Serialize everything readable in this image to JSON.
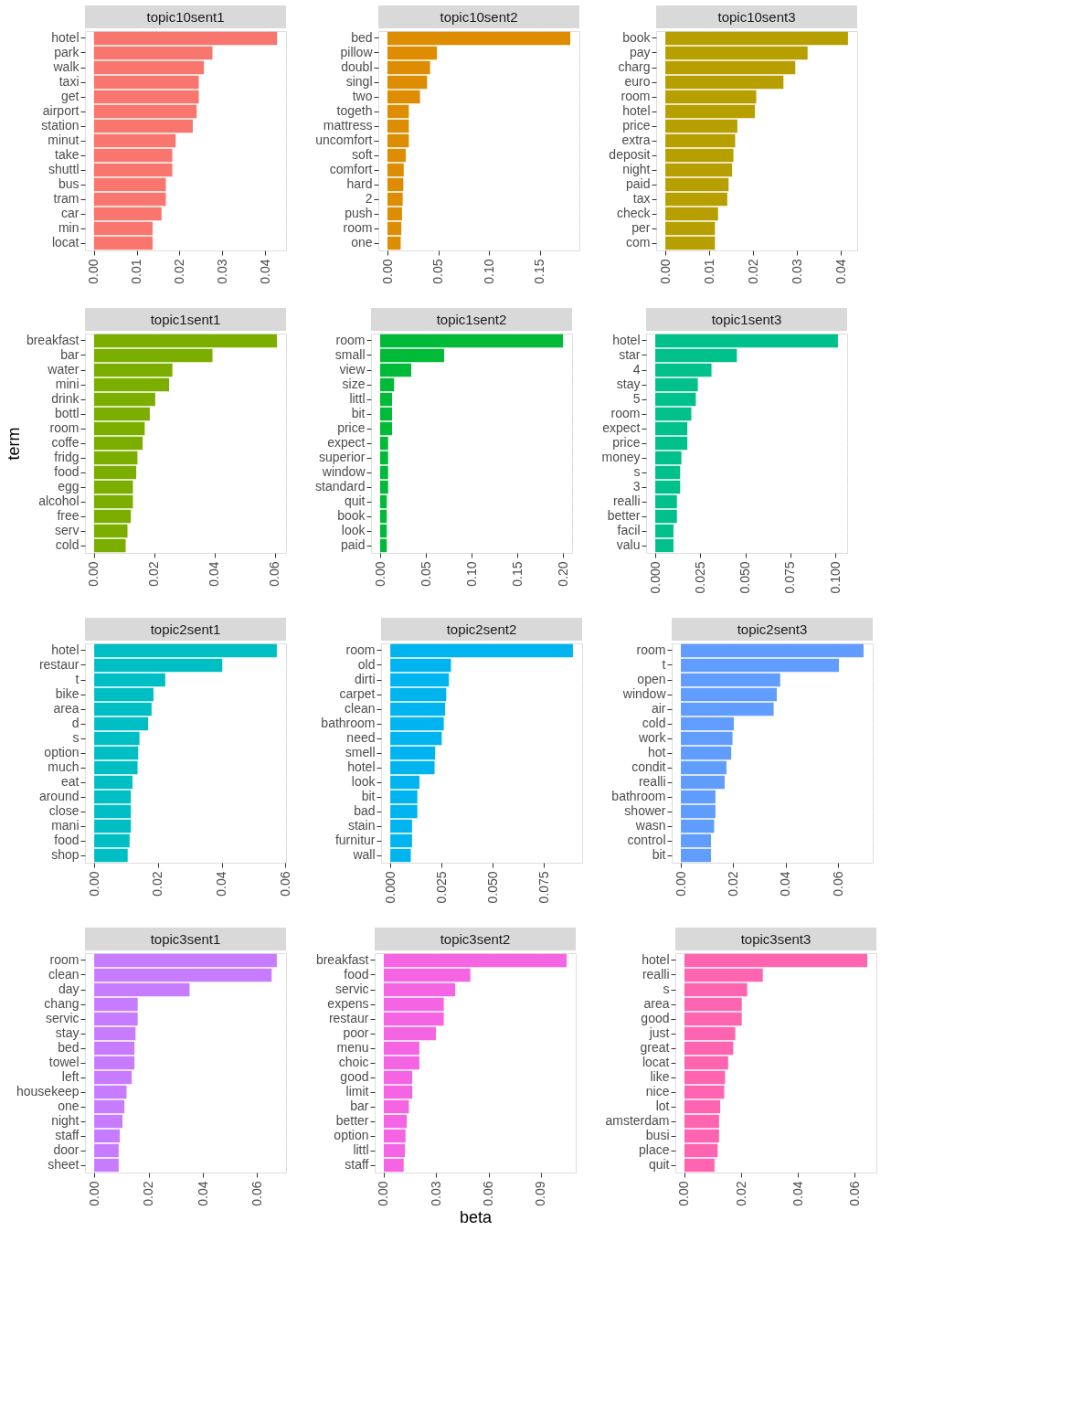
{
  "chart_data": [
    {
      "type": "bar",
      "orientation": "horizontal",
      "title": "topic10sent1",
      "color": "#f8766d",
      "grid": true,
      "categories": [
        "hotel",
        "park",
        "walk",
        "taxi",
        "get",
        "airport",
        "station",
        "minut",
        "take",
        "shuttl",
        "bus",
        "tram",
        "car",
        "min",
        "locat"
      ],
      "values": [
        0.0428,
        0.0277,
        0.0257,
        0.0245,
        0.0245,
        0.024,
        0.0231,
        0.0191,
        0.0183,
        0.0183,
        0.0168,
        0.0168,
        0.0158,
        0.0137,
        0.0137
      ],
      "xlim": [
        -0.0021,
        0.0449
      ],
      "xticks": [
        {
          "value": 0,
          "label": "0.00"
        },
        0.01,
        0.02,
        0.03,
        0.04
      ]
    },
    {
      "type": "bar",
      "orientation": "horizontal",
      "title": "topic10sent2",
      "color": "#de8c00",
      "grid": true,
      "categories": [
        "bed",
        "pillow",
        "doubl",
        "singl",
        "two",
        "togeth",
        "mattress",
        "uncomfort",
        "soft",
        "comfort",
        "hard",
        "2",
        "push",
        "room",
        "one"
      ],
      "values": [
        0.18,
        0.0487,
        0.042,
        0.039,
        0.032,
        0.021,
        0.021,
        0.021,
        0.018,
        0.016,
        0.0156,
        0.015,
        0.0143,
        0.0136,
        0.013
      ],
      "xlim": [
        -0.009,
        0.189
      ],
      "xticks": [
        {
          "value": 0,
          "label": "0.00"
        },
        0.05,
        {
          "value": 0.1,
          "label": "0.10"
        },
        0.15
      ]
    },
    {
      "type": "bar",
      "orientation": "horizontal",
      "title": "topic10sent3",
      "color": "#b79f00",
      "grid": true,
      "categories": [
        "book",
        "pay",
        "charg",
        "euro",
        "room",
        "hotel",
        "price",
        "extra",
        "deposit",
        "night",
        "paid",
        "tax",
        "check",
        "per",
        "com"
      ],
      "values": [
        0.0416,
        0.0324,
        0.0296,
        0.0269,
        0.0207,
        0.0204,
        0.0164,
        0.0159,
        0.0155,
        0.0152,
        0.0144,
        0.0141,
        0.012,
        0.0113,
        0.0113
      ],
      "xlim": [
        -0.0021,
        0.0437
      ],
      "xticks": [
        {
          "value": 0,
          "label": "0.00"
        },
        0.01,
        0.02,
        0.03,
        0.04
      ]
    },
    {
      "type": "bar",
      "orientation": "horizontal",
      "title": "topic1sent1",
      "ylabel": "term",
      "color": "#7cae00",
      "grid": true,
      "categories": [
        "breakfast",
        "bar",
        "water",
        "mini",
        "drink",
        "bottl",
        "room",
        "coffe",
        "fridg",
        "food",
        "egg",
        "alcohol",
        "free",
        "serv",
        "cold"
      ],
      "values": [
        0.0607,
        0.0393,
        0.026,
        0.0249,
        0.0203,
        0.0185,
        0.0168,
        0.0161,
        0.0144,
        0.014,
        0.0129,
        0.0129,
        0.0122,
        0.0111,
        0.0105
      ],
      "xlim": [
        -0.003,
        0.0637
      ],
      "xticks": [
        {
          "value": 0,
          "label": "0.00"
        },
        0.02,
        0.04,
        0.06
      ]
    },
    {
      "type": "bar",
      "orientation": "horizontal",
      "title": "topic1sent2",
      "color": "#00ba38",
      "grid": true,
      "categories": [
        "room",
        "small",
        "view",
        "size",
        "littl",
        "bit",
        "price",
        "expect",
        "superior",
        "window",
        "standard",
        "quit",
        "book",
        "look",
        "paid"
      ],
      "values": [
        0.2,
        0.07,
        0.034,
        0.0152,
        0.013,
        0.013,
        0.013,
        0.0087,
        0.0087,
        0.0087,
        0.0087,
        0.0072,
        0.0072,
        0.0072,
        0.0072
      ],
      "xlim": [
        -0.01,
        0.21
      ],
      "xticks": [
        {
          "value": 0,
          "label": "0.00"
        },
        0.05,
        {
          "value": 0.1,
          "label": "0.10"
        },
        0.15,
        {
          "value": 0.2,
          "label": "0.20"
        }
      ]
    },
    {
      "type": "bar",
      "orientation": "horizontal",
      "title": "topic1sent3",
      "color": "#00c08b",
      "grid": true,
      "categories": [
        "hotel",
        "star",
        "4",
        "stay",
        "5",
        "room",
        "expect",
        "price",
        "money",
        "s",
        "3",
        "realli",
        "better",
        "facil",
        "valu"
      ],
      "values": [
        0.1014,
        0.0453,
        0.0312,
        0.0236,
        0.0225,
        0.02,
        0.0178,
        0.0178,
        0.0145,
        0.0138,
        0.0138,
        0.012,
        0.012,
        0.0101,
        0.0101
      ],
      "xlim": [
        -0.0051,
        0.1065
      ],
      "xticks": [
        {
          "value": 0,
          "label": "0.000"
        },
        0.025,
        {
          "value": 0.05,
          "label": "0.050"
        },
        0.075,
        {
          "value": 0.1,
          "label": "0.100"
        }
      ]
    },
    {
      "type": "bar",
      "orientation": "horizontal",
      "title": "topic2sent1",
      "color": "#00bfc4",
      "grid": true,
      "categories": [
        "hotel",
        "restaur",
        "t",
        "bike",
        "area",
        "d",
        "s",
        "option",
        "much",
        "eat",
        "around",
        "close",
        "mani",
        "food",
        "shop"
      ],
      "values": [
        0.0573,
        0.0402,
        0.0223,
        0.0186,
        0.018,
        0.0169,
        0.0142,
        0.0138,
        0.0136,
        0.012,
        0.0115,
        0.0115,
        0.0115,
        0.0111,
        0.0105
      ],
      "xlim": [
        -0.0029,
        0.0602
      ],
      "xticks": [
        {
          "value": 0,
          "label": "0.00"
        },
        0.02,
        0.04,
        0.06
      ]
    },
    {
      "type": "bar",
      "orientation": "horizontal",
      "title": "topic2sent2",
      "color": "#00b4f0",
      "grid": true,
      "categories": [
        "room",
        "old",
        "dirti",
        "carpet",
        "clean",
        "bathroom",
        "need",
        "smell",
        "hotel",
        "look",
        "bit",
        "bad",
        "stain",
        "furnitur",
        "wall"
      ],
      "values": [
        0.0891,
        0.0296,
        0.0286,
        0.0273,
        0.0267,
        0.0261,
        0.0251,
        0.0219,
        0.0216,
        0.0142,
        0.0132,
        0.0132,
        0.0106,
        0.0106,
        0.01
      ],
      "xlim": [
        -0.0045,
        0.0936
      ],
      "xticks": [
        {
          "value": 0,
          "label": "0.000"
        },
        0.025,
        {
          "value": 0.05,
          "label": "0.050"
        },
        0.075
      ]
    },
    {
      "type": "bar",
      "orientation": "horizontal",
      "title": "topic2sent3",
      "color": "#619cff",
      "grid": true,
      "categories": [
        "room",
        "t",
        "open",
        "window",
        "air",
        "cold",
        "work",
        "hot",
        "condit",
        "realli",
        "bathroom",
        "shower",
        "wasn",
        "control",
        "bit"
      ],
      "values": [
        0.0697,
        0.0603,
        0.0379,
        0.0366,
        0.0354,
        0.0202,
        0.0197,
        0.0192,
        0.0174,
        0.0167,
        0.0132,
        0.0132,
        0.0127,
        0.0115,
        0.0115
      ],
      "xlim": [
        -0.0035,
        0.0732
      ],
      "xticks": [
        {
          "value": 0,
          "label": "0.00"
        },
        0.02,
        0.04,
        0.06
      ]
    },
    {
      "type": "bar",
      "orientation": "horizontal",
      "title": "topic3sent1",
      "color": "#c77cff",
      "grid": true,
      "categories": [
        "room",
        "clean",
        "day",
        "chang",
        "servic",
        "stay",
        "bed",
        "towel",
        "left",
        "housekeep",
        "one",
        "night",
        "staff",
        "door",
        "sheet"
      ],
      "values": [
        0.0672,
        0.0653,
        0.0351,
        0.016,
        0.016,
        0.0152,
        0.0148,
        0.0148,
        0.0138,
        0.0119,
        0.0111,
        0.0104,
        0.0094,
        0.009,
        0.009
      ],
      "xlim": [
        -0.0034,
        0.0706
      ],
      "xticks": [
        {
          "value": 0,
          "label": "0.00"
        },
        0.02,
        0.04,
        0.06
      ]
    },
    {
      "type": "bar",
      "orientation": "horizontal",
      "title": "topic3sent2",
      "xlabel": "beta",
      "color": "#f564e3",
      "grid": true,
      "categories": [
        "breakfast",
        "food",
        "servic",
        "expens",
        "restaur",
        "poor",
        "menu",
        "choic",
        "good",
        "limit",
        "bar",
        "better",
        "option",
        "littl",
        "staff"
      ],
      "values": [
        0.1048,
        0.0496,
        0.0409,
        0.0344,
        0.0344,
        0.0299,
        0.0204,
        0.0204,
        0.0163,
        0.0163,
        0.0144,
        0.0132,
        0.0125,
        0.0121,
        0.0114
      ],
      "xlim": [
        -0.0052,
        0.11
      ],
      "xticks": [
        {
          "value": 0,
          "label": "0.00"
        },
        0.03,
        0.06,
        0.09
      ]
    },
    {
      "type": "bar",
      "orientation": "horizontal",
      "title": "topic3sent3",
      "color": "#ff64b0",
      "grid": true,
      "categories": [
        "hotel",
        "realli",
        "s",
        "area",
        "good",
        "just",
        "great",
        "locat",
        "like",
        "nice",
        "lot",
        "amsterdam",
        "busi",
        "place",
        "quit"
      ],
      "values": [
        0.0644,
        0.0276,
        0.0221,
        0.0202,
        0.0202,
        0.0179,
        0.0172,
        0.0154,
        0.0143,
        0.014,
        0.0126,
        0.0122,
        0.0122,
        0.0117,
        0.0106
      ],
      "xlim": [
        -0.0032,
        0.0676
      ],
      "xticks": [
        {
          "value": 0,
          "label": "0.00"
        },
        0.02,
        0.04,
        0.06
      ]
    }
  ]
}
